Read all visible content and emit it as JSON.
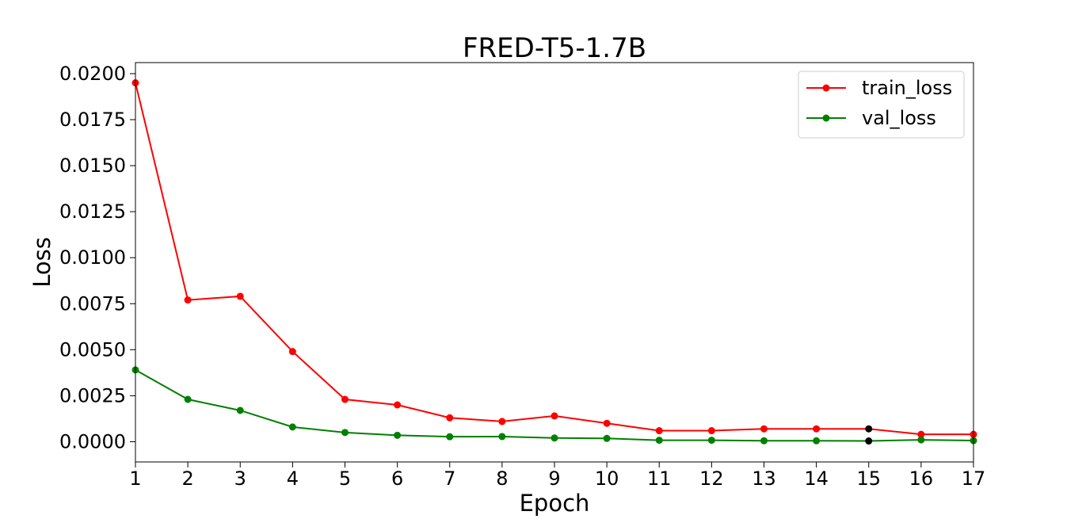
{
  "chart_data": {
    "type": "line",
    "title": "FRED-T5-1.7B",
    "xlabel": "Epoch",
    "ylabel": "Loss",
    "x": [
      1,
      2,
      3,
      4,
      5,
      6,
      7,
      8,
      9,
      10,
      11,
      12,
      13,
      14,
      15,
      16,
      17
    ],
    "xlim": [
      1,
      17
    ],
    "ylim": [
      -0.0011,
      0.0206
    ],
    "yticks": [
      "0.0000",
      "0.0025",
      "0.0050",
      "0.0075",
      "0.0100",
      "0.0125",
      "0.0150",
      "0.0175",
      "0.0200"
    ],
    "ytick_values": [
      0.0,
      0.0025,
      0.005,
      0.0075,
      0.01,
      0.0125,
      0.015,
      0.0175,
      0.02
    ],
    "xticks": [
      "1",
      "2",
      "3",
      "4",
      "5",
      "6",
      "7",
      "8",
      "9",
      "10",
      "11",
      "12",
      "13",
      "14",
      "15",
      "16",
      "17"
    ],
    "grid": false,
    "legend_position": "top-right",
    "series": [
      {
        "name": "train_loss",
        "color": "#ff0000",
        "values": [
          0.0195,
          0.0077,
          0.0079,
          0.0049,
          0.0023,
          0.002,
          0.0013,
          0.0011,
          0.0014,
          0.001,
          0.0006,
          0.0006,
          0.0007,
          0.0007,
          0.0007,
          0.0004,
          0.0004
        ]
      },
      {
        "name": "val_loss",
        "color": "#008000",
        "values": [
          0.0039,
          0.0023,
          0.0017,
          0.0008,
          0.0005,
          0.00035,
          0.00027,
          0.00028,
          0.0002,
          0.00018,
          8e-05,
          8e-05,
          5e-05,
          5e-05,
          4e-05,
          0.0001,
          6e-05
        ]
      }
    ],
    "highlight": {
      "epoch": 15,
      "color": "#000000"
    }
  }
}
